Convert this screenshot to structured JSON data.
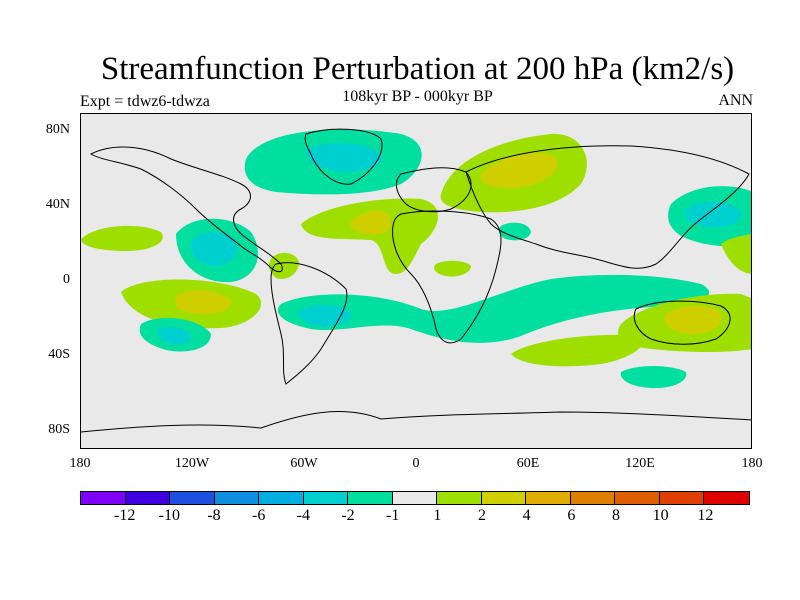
{
  "title": "Streamfunction Perturbation at 200 hPa (km2/s)",
  "subtitle": "108kyr BP - 000kyr BP",
  "left_label": "Expt = tdwz6-tdwza",
  "right_label": "ANN",
  "y_ticks": [
    "80N",
    "40N",
    "0",
    "40S",
    "80S"
  ],
  "x_ticks": [
    "180",
    "120W",
    "60W",
    "0",
    "60E",
    "120E",
    "180"
  ],
  "colorbar": {
    "colors": [
      "#7f00ff",
      "#3f00df",
      "#1f4fdf",
      "#0f8fdf",
      "#00afdf",
      "#00cfd0",
      "#00dfa0",
      "#e9e9e9",
      "#9fdf00",
      "#cfcf00",
      "#dfaf00",
      "#df7f00",
      "#df5f00",
      "#df3f00",
      "#df0000"
    ],
    "labels": [
      "-12",
      "-10",
      "-8",
      "-6",
      "-4",
      "-2",
      "-1",
      "1",
      "2",
      "4",
      "6",
      "8",
      "10",
      "12"
    ]
  },
  "map": {
    "background_color": "#e9e9e9",
    "coastline_color": "#000000"
  }
}
